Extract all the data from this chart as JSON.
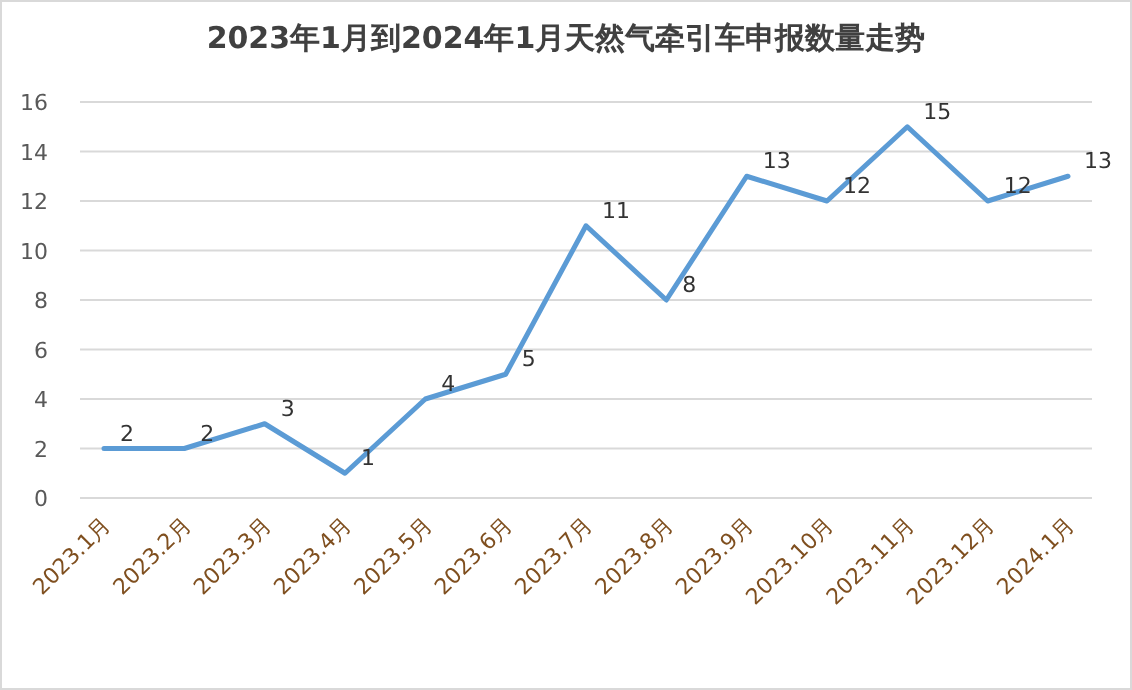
{
  "chart_data": {
    "type": "line",
    "title": "2023年1月到2024年1月天然气牵引车申报数量走势",
    "categories": [
      "2023.1月",
      "2023.2月",
      "2023.3月",
      "2023.4月",
      "2023.5月",
      "2023.6月",
      "2023.7月",
      "2023.8月",
      "2023.9月",
      "2023.10月",
      "2023.11月",
      "2023.12月",
      "2024.1月"
    ],
    "series": [
      {
        "color": "#5b9bd5",
        "values": [
          2,
          2,
          3,
          1,
          4,
          5,
          11,
          8,
          13,
          12,
          15,
          12,
          13
        ]
      }
    ],
    "ylim": [
      0,
      16
    ],
    "yticks": [
      0,
      2,
      4,
      6,
      8,
      10,
      12,
      14,
      16
    ],
    "grid": "y",
    "data_labels": true,
    "marker": "none",
    "line_style": "solid"
  }
}
